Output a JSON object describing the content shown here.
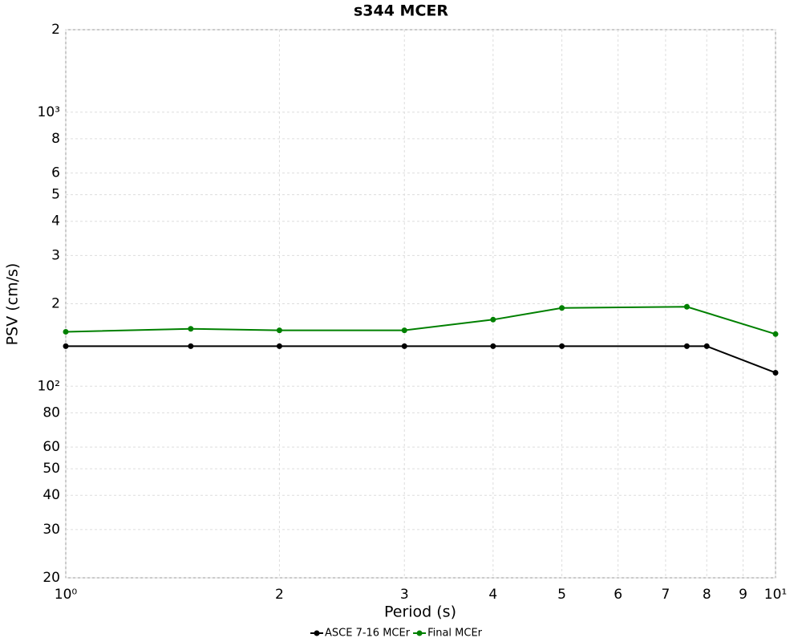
{
  "chart_data": {
    "type": "line",
    "title": "s344 MCER",
    "xlabel": "Period (s)",
    "ylabel": "PSV (cm/s)",
    "xscale": "log",
    "yscale": "log",
    "grid": true,
    "legend": "bottom",
    "xlim": [
      1,
      10
    ],
    "ylim": [
      20,
      2000
    ],
    "xticks": [
      {
        "value": 1,
        "label": "10⁰"
      },
      2,
      3,
      4,
      5,
      6,
      7,
      8,
      9,
      {
        "value": 10,
        "label": "10¹"
      }
    ],
    "yticks": [
      20,
      30,
      40,
      50,
      60,
      80,
      {
        "value": 100,
        "label": "10²"
      },
      {
        "value": 200,
        "label": "2"
      },
      {
        "value": 300,
        "label": "3"
      },
      {
        "value": 400,
        "label": "4"
      },
      {
        "value": 500,
        "label": "5"
      },
      {
        "value": 600,
        "label": "6"
      },
      {
        "value": 800,
        "label": "8"
      },
      {
        "value": 1000,
        "label": "10³"
      },
      {
        "value": 2000,
        "label": "2"
      }
    ],
    "series": [
      {
        "name": "ASCE 7-16 MCEr",
        "color": "#000000",
        "x": [
          1,
          1.5,
          2,
          3,
          4,
          5,
          7.5,
          8,
          10
        ],
        "values": [
          140,
          140,
          140,
          140,
          140,
          140,
          140,
          140,
          112
        ]
      },
      {
        "name": "Final MCEr",
        "color": "#008000",
        "x": [
          1,
          1.5,
          2,
          3,
          4,
          5,
          7.5,
          10
        ],
        "values": [
          158,
          162,
          160,
          160,
          175,
          193,
          195,
          155
        ]
      }
    ]
  }
}
